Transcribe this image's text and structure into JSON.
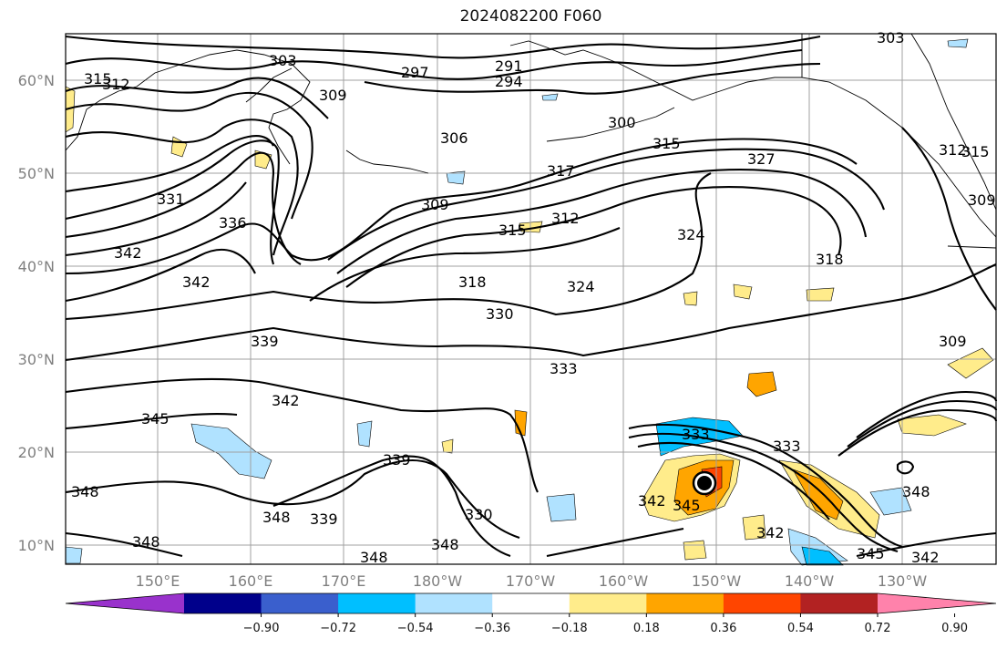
{
  "title": "2024082200 F060",
  "lat_labels": [
    "60°N",
    "50°N",
    "40°N",
    "30°N",
    "20°N",
    "10°N"
  ],
  "lon_labels": [
    "150°E",
    "160°E",
    "170°E",
    "180°W",
    "170°W",
    "160°W",
    "150°W",
    "140°W",
    "130°W"
  ],
  "colorbar": {
    "colors": [
      "#9932cc",
      "#00008b",
      "#3a5fcd",
      "#00bfff",
      "#b0e2ff",
      "#ffffff",
      "#ffec8b",
      "#ffa500",
      "#ff4500",
      "#b22222",
      "#ff82ab"
    ],
    "tick_labels": [
      "−0.90",
      "−0.72",
      "−0.54",
      "−0.36",
      "−0.18",
      "0.18",
      "0.36",
      "0.54",
      "0.72",
      "0.90"
    ]
  },
  "contour_labels": [
    "303",
    "297",
    "291",
    "294",
    "315",
    "312",
    "309",
    "306",
    "300",
    "315",
    "317",
    "327",
    "312",
    "315",
    "309",
    "331",
    "309",
    "315",
    "312",
    "324",
    "318",
    "336",
    "342",
    "342",
    "318",
    "324",
    "330",
    "339",
    "333",
    "342",
    "345",
    "333",
    "333",
    "348",
    "339",
    "330",
    "342",
    "345",
    "342",
    "348",
    "339",
    "348",
    "348",
    "345",
    "342",
    "348",
    "348",
    "309",
    "312"
  ],
  "shading_colors": {
    "positive": "#ffec8b",
    "positive_strong": "#ffa500",
    "positive_stronger": "#ff4500",
    "negative": "#b0e2ff",
    "negative_strong": "#00bfff"
  }
}
